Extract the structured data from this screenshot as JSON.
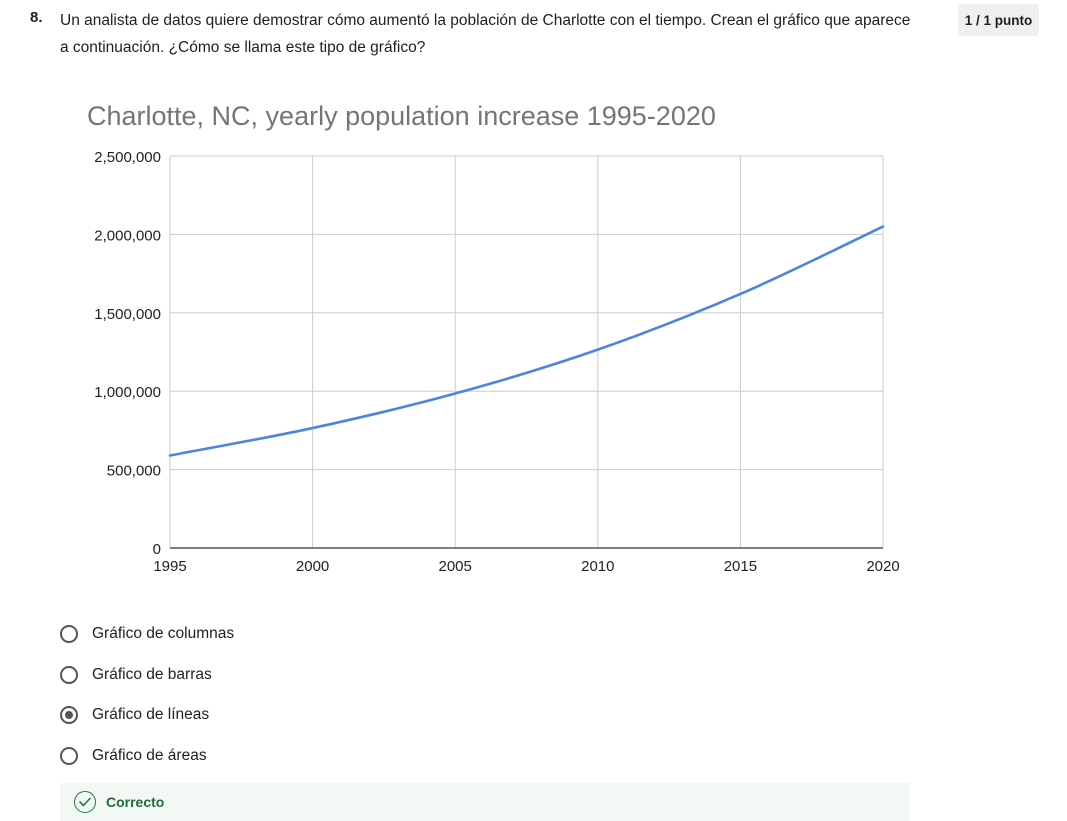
{
  "question": {
    "number": "8.",
    "text": "Un analista de datos quiere demostrar cómo aumentó la población de Charlotte con el tiempo. Crean el gráfico que aparece a continuación. ¿Cómo se llama este tipo de gráfico?",
    "points": "1 / 1 punto"
  },
  "chart_data": {
    "type": "line",
    "title": "Charlotte, NC, yearly population increase 1995-2020",
    "xlabel": "",
    "ylabel": "",
    "x": [
      1995,
      2000,
      2005,
      2010,
      2015,
      2020
    ],
    "series": [
      {
        "values": [
          590000,
          765000,
          985000,
          1265000,
          1620000,
          2050000
        ]
      }
    ],
    "xlim": [
      1995,
      2020
    ],
    "ylim": [
      0,
      2500000
    ],
    "x_ticks": [
      "1995",
      "2000",
      "2005",
      "2010",
      "2015",
      "2020"
    ],
    "y_ticks": [
      "0",
      "500,000",
      "1,000,000",
      "1,500,000",
      "2,000,000",
      "2,500,000"
    ],
    "y_tick_values": [
      0,
      500000,
      1000000,
      1500000,
      2000000,
      2500000
    ],
    "x_tick_values": [
      1995,
      2000,
      2005,
      2010,
      2015,
      2020
    ],
    "grid": true,
    "line_color": "#4a86e0",
    "grid_color": "#cccccc"
  },
  "options": [
    {
      "label": "Gráfico de columnas",
      "selected": false
    },
    {
      "label": "Gráfico de barras",
      "selected": false
    },
    {
      "label": "Gráfico de líneas",
      "selected": true
    },
    {
      "label": "Gráfico de áreas",
      "selected": false
    }
  ],
  "feedback": {
    "label": "Correcto",
    "icon": "check-circle-icon",
    "color": "#1e6b3c"
  }
}
